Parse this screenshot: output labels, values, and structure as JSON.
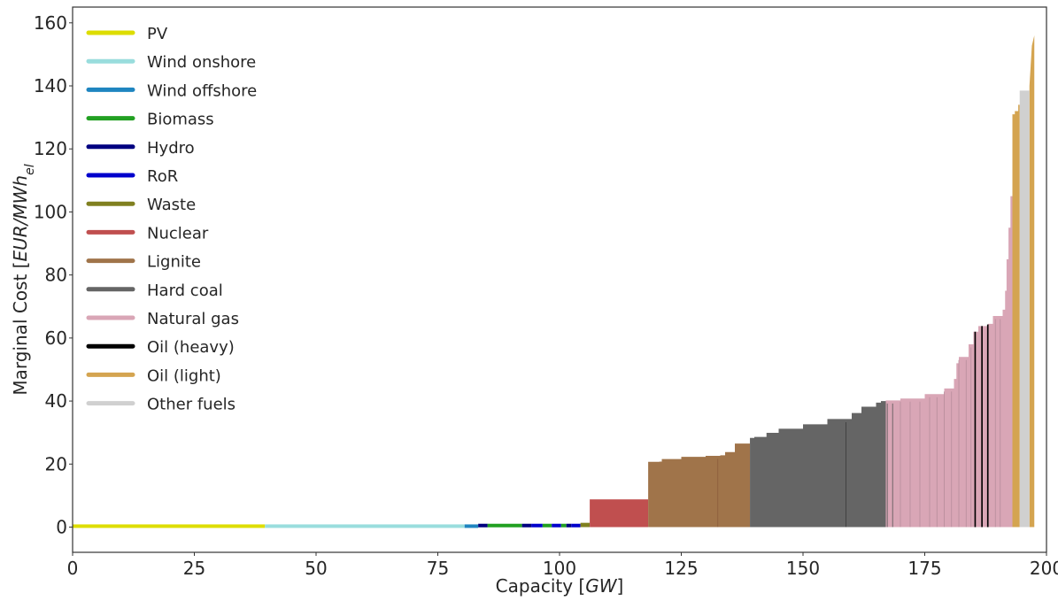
{
  "chart_data": {
    "type": "area",
    "title": "",
    "xlabel_prefix": "Capacity ",
    "xlabel_unit": "GW",
    "ylabel_prefix": "Marginal Cost ",
    "ylabel_unit_main": "EUR/MWh",
    "ylabel_unit_sub": "el",
    "xlim": [
      0,
      200
    ],
    "ylim": [
      -8,
      165
    ],
    "x_ticks": [
      0,
      25,
      50,
      75,
      100,
      125,
      150,
      175,
      200
    ],
    "y_ticks": [
      0,
      20,
      40,
      60,
      80,
      100,
      120,
      140,
      160
    ],
    "grid": false,
    "legend_position": "upper-left",
    "series": [
      {
        "name": "PV",
        "color": "#dddd00",
        "segments": [
          [
            0,
            39.5,
            0.3
          ]
        ]
      },
      {
        "name": "Wind onshore",
        "color": "#99dddd",
        "segments": [
          [
            39.5,
            80.5,
            0.3
          ]
        ]
      },
      {
        "name": "Wind offshore",
        "color": "#1f85c0",
        "segments": [
          [
            80.5,
            83.3,
            0.3
          ]
        ]
      },
      {
        "name": "Biomass",
        "color": "#22a022",
        "segments": [
          [
            85.2,
            92.3,
            0.5
          ],
          [
            96.5,
            98.4,
            0.5
          ],
          [
            100.3,
            101.4,
            0.5
          ]
        ]
      },
      {
        "name": "Hydro",
        "color": "#000080",
        "segments": [
          [
            83.3,
            85.2,
            0.5
          ],
          [
            92.3,
            94.2,
            0.5
          ],
          [
            101.4,
            102.4,
            0.5
          ]
        ]
      },
      {
        "name": "RoR",
        "color": "#0000cc",
        "segments": [
          [
            94.2,
            96.5,
            0.5
          ],
          [
            98.4,
            100.3,
            0.5
          ],
          [
            102.4,
            104.3,
            0.5
          ]
        ]
      },
      {
        "name": "Waste",
        "color": "#808020",
        "segments": [
          [
            104.3,
            106.2,
            0.8
          ]
        ]
      },
      {
        "name": "Nuclear",
        "color": "#c04f4f",
        "segments": [
          [
            106.2,
            118.2,
            8.8
          ]
        ]
      },
      {
        "name": "Lignite",
        "color": "#a0744a",
        "curve": [
          [
            118.2,
            20.7
          ],
          [
            120.5,
            20.8
          ],
          [
            121.0,
            21.6
          ],
          [
            125.0,
            22.3
          ],
          [
            130.0,
            22.6
          ],
          [
            133.0,
            22.8
          ],
          [
            134.0,
            23.8
          ],
          [
            136.0,
            26.5
          ],
          [
            139.1,
            28.3
          ]
        ]
      },
      {
        "name": "Hard coal",
        "color": "#656565",
        "curve": [
          [
            139.1,
            28.3
          ],
          [
            140.0,
            28.6
          ],
          [
            142.5,
            29.9
          ],
          [
            145.0,
            31.2
          ],
          [
            150.0,
            32.6
          ],
          [
            155.0,
            34.3
          ],
          [
            160.0,
            36.2
          ],
          [
            162.0,
            38.2
          ],
          [
            165.0,
            39.5
          ],
          [
            166.0,
            40.0
          ],
          [
            167.0,
            40.2
          ]
        ]
      },
      {
        "name": "Natural gas",
        "color": "#d9a6b6",
        "curve": [
          [
            167.0,
            40.2
          ],
          [
            170.0,
            40.8
          ],
          [
            175.0,
            42.2
          ],
          [
            179.0,
            44.0
          ],
          [
            181.0,
            47.0
          ],
          [
            181.5,
            52.0
          ],
          [
            182.0,
            54.0
          ],
          [
            184.0,
            58.0
          ],
          [
            185.0,
            62.0
          ],
          [
            186.0,
            63.8
          ],
          [
            188.0,
            64.5
          ],
          [
            189.0,
            67.0
          ],
          [
            191.0,
            69.0
          ],
          [
            191.5,
            75.0
          ],
          [
            191.8,
            85.0
          ],
          [
            192.2,
            95.0
          ],
          [
            192.6,
            105.0
          ],
          [
            193.0,
            106.0
          ]
        ]
      },
      {
        "name": "Oil (heavy)",
        "color": "#000000",
        "segments": [
          [
            185.2,
            185.5,
            62.0
          ],
          [
            186.6,
            186.9,
            63.8
          ],
          [
            187.8,
            188.1,
            64.3
          ]
        ]
      },
      {
        "name": "Oil (light)",
        "color": "#d4a450",
        "curve": [
          [
            193.0,
            131.0
          ],
          [
            193.5,
            132.0
          ],
          [
            194.2,
            134.0
          ],
          [
            194.5,
            134.0
          ]
        ],
        "extra": [
          [
            196.5,
            197.5,
            140.0,
            156.0
          ]
        ]
      },
      {
        "name": "Other fuels",
        "color": "#d0d0d0",
        "segments": [
          [
            194.5,
            196.5,
            138.5
          ]
        ]
      }
    ],
    "separator_lines": [
      {
        "color": "#555555",
        "x": [
          167.3,
          168.4
        ]
      },
      {
        "color": "#b68c9c",
        "x": [
          170.0,
          172.0,
          174.0,
          176.0,
          177.5,
          179.0,
          180.5,
          182.0,
          183.5,
          184.5,
          189.5,
          190.5
        ]
      },
      {
        "color": "#3a3a3a",
        "x": [
          158.8
        ]
      },
      {
        "color": "#8b5c3a",
        "x": [
          132.5
        ]
      }
    ]
  }
}
